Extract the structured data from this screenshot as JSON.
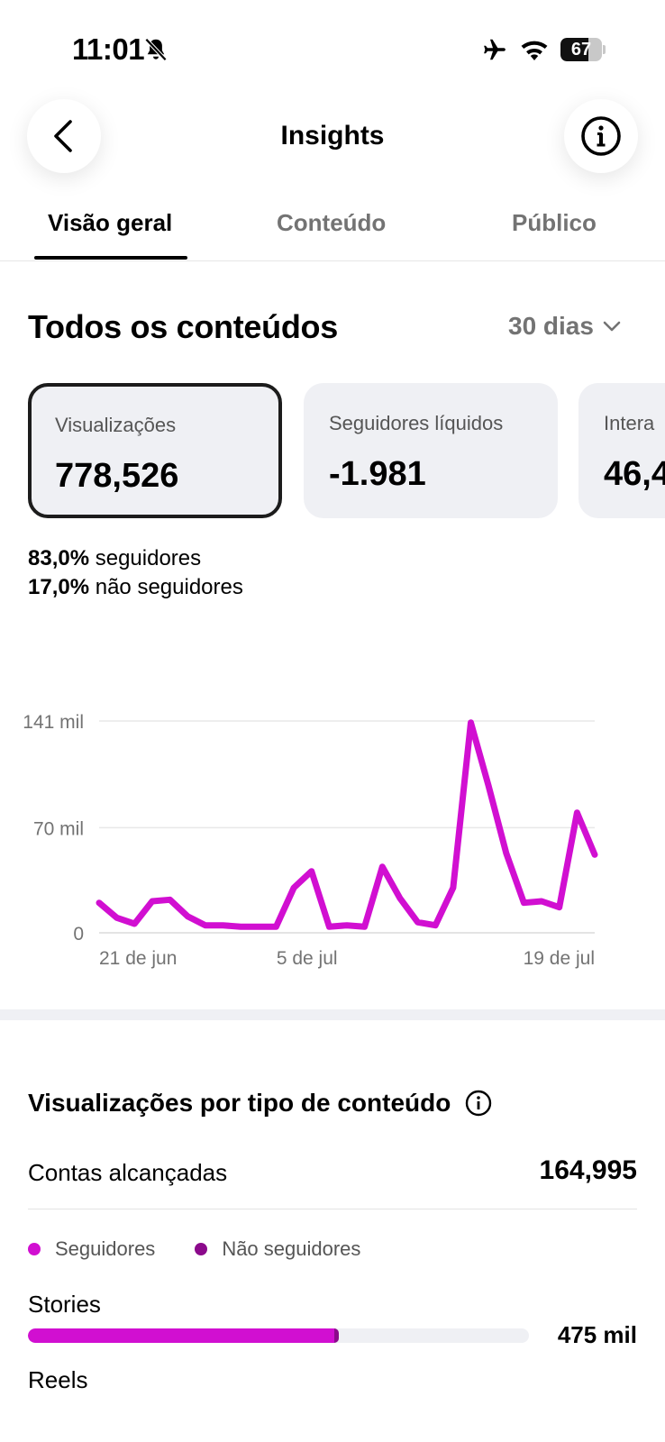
{
  "status_bar": {
    "time": "11:01",
    "battery": "67",
    "battery_fraction": 0.67
  },
  "header": {
    "title": "Insights"
  },
  "tabs": [
    {
      "label": "Visão geral",
      "active": true
    },
    {
      "label": "Conteúdo",
      "active": false
    },
    {
      "label": "Público",
      "active": false
    }
  ],
  "overview": {
    "title": "Todos os conteúdos",
    "period": "30 dias",
    "cards": [
      {
        "label": "Visualizações",
        "value": "778,526"
      },
      {
        "label": "Seguidores líquidos",
        "value": "-1.981"
      },
      {
        "label": "Intera",
        "value": "46,4"
      }
    ],
    "breakdown": [
      {
        "value": "83,0%",
        "label": "seguidores"
      },
      {
        "value": "17,0%",
        "label": "não seguidores"
      }
    ]
  },
  "chart_data": {
    "type": "line",
    "color": "#d10fd1",
    "grid": true,
    "ylim": [
      0,
      141
    ],
    "y_ticks": [
      {
        "value": 141,
        "label": "141 mil"
      },
      {
        "value": 70,
        "label": "70 mil"
      },
      {
        "value": 0,
        "label": "0"
      }
    ],
    "x_ticks": [
      {
        "index": 0,
        "label": "21 de jun"
      },
      {
        "index": 12,
        "label": "5 de jul"
      },
      {
        "index": 28,
        "label": "19 de jul"
      }
    ],
    "series": [
      {
        "values": [
          20,
          10,
          6,
          21,
          22,
          11,
          5,
          5,
          4,
          4,
          4,
          30,
          41,
          4,
          5,
          4,
          44,
          23,
          7,
          5,
          30,
          140,
          98,
          53,
          20,
          21,
          17,
          80,
          52
        ]
      }
    ]
  },
  "content_type": {
    "title": "Visualizações por tipo de conteúdo",
    "reach_label": "Contas alcançadas",
    "reach_value": "164,995",
    "legend": [
      {
        "label": "Seguidores",
        "color": "#d10fd1"
      },
      {
        "label": "Não seguidores",
        "color": "#8b0a8b"
      }
    ],
    "types": [
      {
        "label": "Stories",
        "value": "475 mil",
        "bar_fraction": 0.62,
        "followers_fraction": 0.985
      },
      {
        "label": "Reels"
      }
    ]
  }
}
